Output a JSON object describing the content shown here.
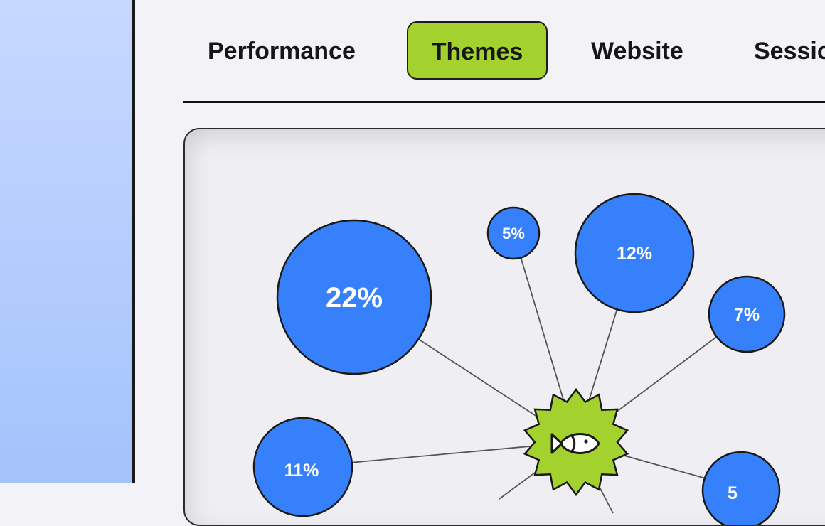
{
  "tabs": [
    {
      "label": "Performance",
      "active": false
    },
    {
      "label": "Themes",
      "active": true
    },
    {
      "label": "Website",
      "active": false
    },
    {
      "label": "Sessic",
      "active": false
    }
  ],
  "graph": {
    "center_icon": "fish-icon",
    "nodes": [
      {
        "label": "22%"
      },
      {
        "label": "5%"
      },
      {
        "label": "12%"
      },
      {
        "label": "7%"
      },
      {
        "label": "11%"
      },
      {
        "label": "5"
      }
    ]
  },
  "colors": {
    "accent_green": "#a3d12d",
    "node_blue": "#3780fc",
    "left_panel": "#b6ceff"
  }
}
